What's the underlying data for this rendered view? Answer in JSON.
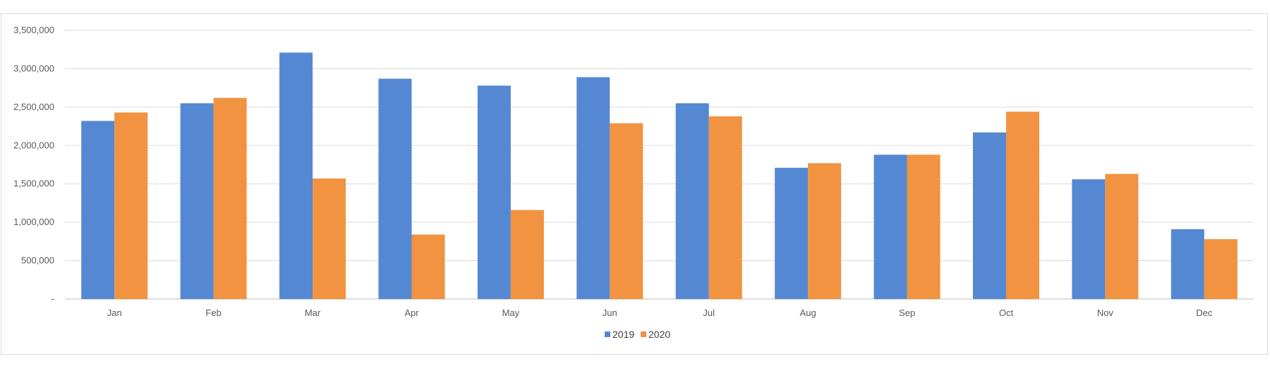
{
  "chart_data": {
    "type": "bar",
    "title": "",
    "xlabel": "",
    "ylabel": "",
    "categories": [
      "Jan",
      "Feb",
      "Mar",
      "Apr",
      "May",
      "Jun",
      "Jul",
      "Aug",
      "Sep",
      "Oct",
      "Nov",
      "Dec"
    ],
    "series": [
      {
        "name": "2019",
        "color": "#5588d2",
        "values": [
          2320000,
          2550000,
          3210000,
          2870000,
          2780000,
          2890000,
          2550000,
          1710000,
          1880000,
          2170000,
          1560000,
          910000
        ]
      },
      {
        "name": "2020",
        "color": "#f19340",
        "values": [
          2430000,
          2620000,
          1570000,
          840000,
          1160000,
          2290000,
          2380000,
          1770000,
          1880000,
          2440000,
          1630000,
          780000
        ]
      }
    ],
    "ylim": [
      0,
      3500000
    ],
    "yticks": [
      0,
      500000,
      1000000,
      1500000,
      2000000,
      2500000,
      3000000,
      3500000
    ],
    "ytick_labels": [
      "-",
      "500,000",
      "1,000,000",
      "1,500,000",
      "2,000,000",
      "2,500,000",
      "3,000,000",
      "3,500,000"
    ],
    "grid": true,
    "legend_position": "bottom"
  }
}
